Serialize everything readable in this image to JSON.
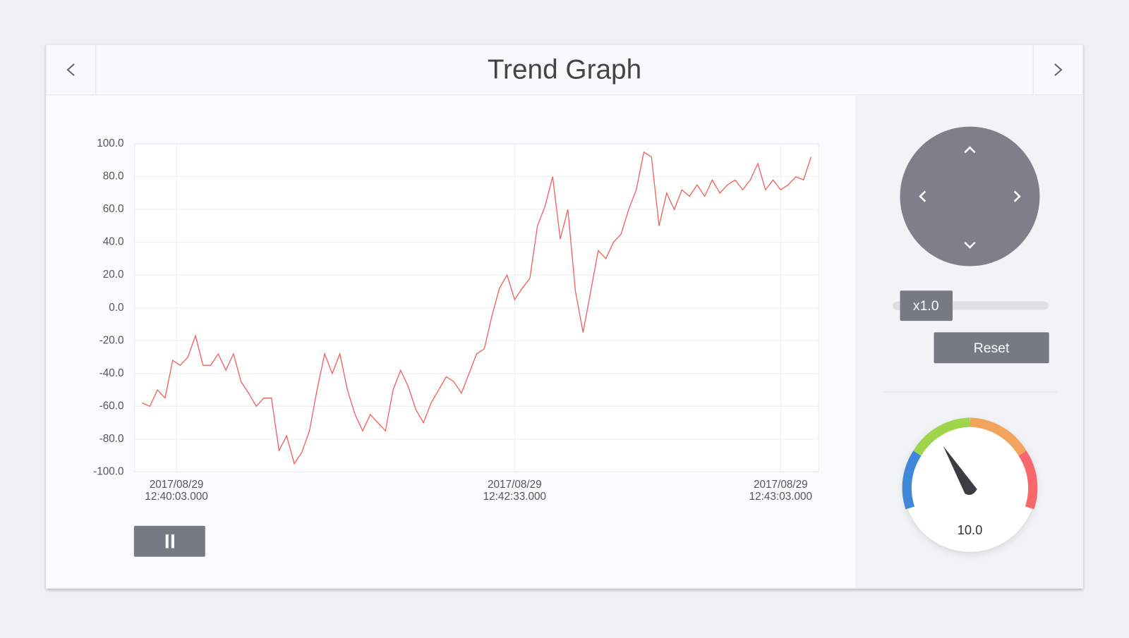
{
  "header": {
    "title": "Trend Graph"
  },
  "chart_data": {
    "type": "line",
    "x": [
      2,
      4,
      6,
      8,
      10,
      12,
      14,
      16,
      18,
      20,
      22,
      24,
      26,
      28,
      30,
      32,
      34,
      36,
      38,
      40,
      42,
      44,
      46,
      48,
      50,
      52,
      54,
      56,
      58,
      60,
      62,
      64,
      66,
      68,
      70,
      72,
      74,
      76,
      78,
      80,
      82,
      84,
      86,
      88,
      90,
      92,
      94,
      96,
      98,
      100,
      102,
      104,
      106,
      108,
      110,
      112,
      114,
      116,
      118,
      120,
      122,
      124,
      126,
      128,
      130,
      132,
      134,
      136,
      138,
      140,
      142,
      144,
      146,
      148,
      150,
      152,
      154,
      156,
      158,
      160,
      162,
      164,
      166,
      168,
      170,
      172,
      174,
      176,
      178
    ],
    "series": [
      {
        "color": "#f0605e",
        "values": [
          -58,
          -60,
          -50,
          -55,
          -32,
          -35,
          -30,
          -17,
          -35,
          -35,
          -28,
          -38,
          -28,
          -45,
          -52,
          -60,
          -55,
          -55,
          -87,
          -78,
          -95,
          -88,
          -75,
          -50,
          -28,
          -40,
          -28,
          -50,
          -65,
          -75,
          -65,
          -70,
          -75,
          -50,
          -38,
          -48,
          -62,
          -70,
          -58,
          -50,
          -42,
          -45,
          -52,
          -40,
          -28,
          -25,
          -5,
          12,
          20,
          5,
          12,
          18,
          50,
          62,
          80,
          42,
          60,
          10,
          -15,
          10,
          35,
          30,
          40,
          45,
          60,
          72,
          95,
          92,
          50,
          70,
          60,
          72,
          68,
          75,
          68,
          78,
          70,
          75,
          78,
          72,
          78,
          88,
          72,
          78,
          72,
          75,
          80,
          78,
          92
        ]
      }
    ],
    "xlim": [
      0,
      180
    ],
    "xticks": [
      {
        "value": 11,
        "label": "2017/08/29 12:40:03.000"
      },
      {
        "value": 100,
        "label": "2017/08/29 12:42:33.000"
      },
      {
        "value": 170,
        "label": "2017/08/29 12:43:03.000"
      }
    ],
    "ylim": [
      -100,
      100
    ],
    "yticks": [
      {
        "value": 100,
        "label": "100.0"
      },
      {
        "value": 80,
        "label": "80.0"
      },
      {
        "value": 60,
        "label": "60.0"
      },
      {
        "value": 40,
        "label": "40.0"
      },
      {
        "value": 20,
        "label": "20.0"
      },
      {
        "value": 0,
        "label": "0.0"
      },
      {
        "value": -20,
        "label": "-20.0"
      },
      {
        "value": -40,
        "label": "-40.0"
      },
      {
        "value": -60,
        "label": "-60.0"
      },
      {
        "value": -80,
        "label": "-80.0"
      },
      {
        "value": -100,
        "label": "-100.0"
      }
    ],
    "grid": true
  },
  "controls": {
    "zoom": "x1.0",
    "reset": "Reset",
    "gauge_value": "10.0"
  }
}
